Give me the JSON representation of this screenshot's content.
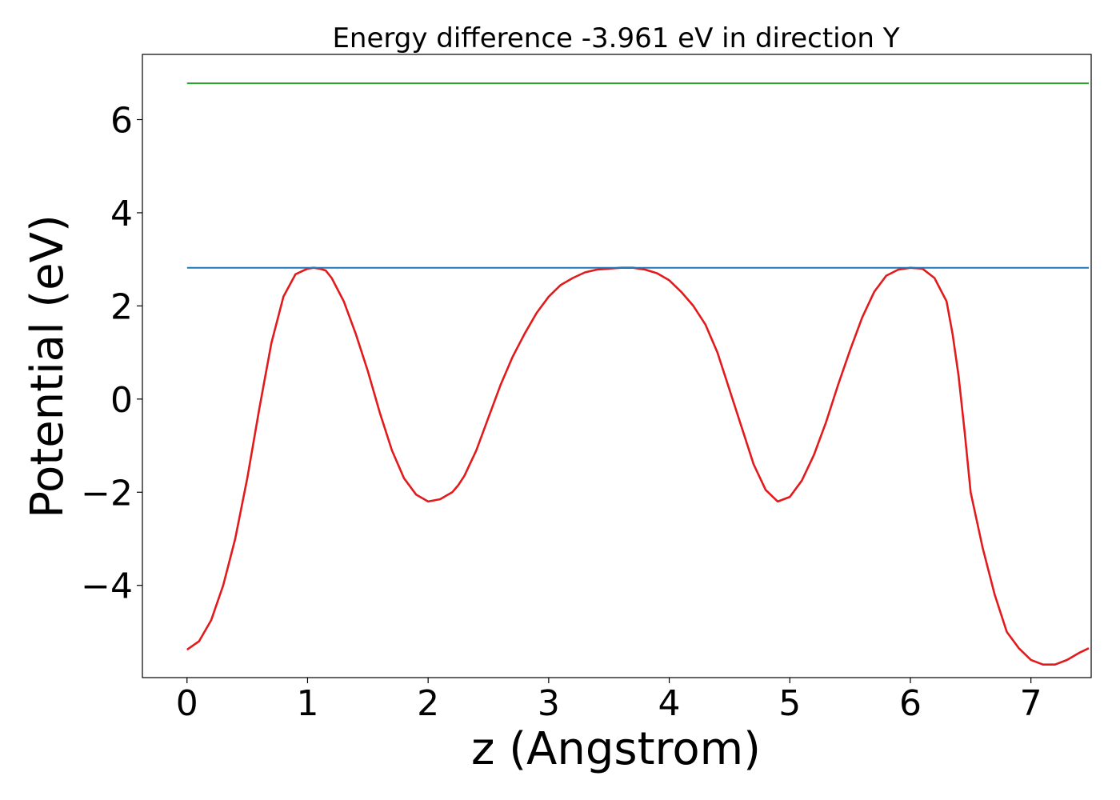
{
  "chart_data": {
    "type": "line",
    "title": "Energy difference -3.961 eV in direction Y",
    "xlabel": "z (Angstrom)",
    "ylabel": "Potential (eV)",
    "xlim": [
      -0.37,
      7.5
    ],
    "ylim": [
      -5.98,
      7.4
    ],
    "xticks": [
      0,
      1,
      2,
      3,
      4,
      5,
      6,
      7
    ],
    "xtick_labels": [
      "0",
      "1",
      "2",
      "3",
      "4",
      "5",
      "6",
      "7"
    ],
    "yticks": [
      -4,
      -2,
      0,
      2,
      4,
      6
    ],
    "ytick_labels": [
      "−4",
      "−2",
      "0",
      "2",
      "4",
      "6"
    ],
    "grid": false,
    "series": [
      {
        "role": "potential",
        "color": "#e31a1c",
        "x": [
          0.0,
          0.1,
          0.2,
          0.3,
          0.4,
          0.5,
          0.6,
          0.7,
          0.8,
          0.9,
          1.0,
          1.05,
          1.1,
          1.15,
          1.2,
          1.3,
          1.4,
          1.5,
          1.6,
          1.7,
          1.8,
          1.9,
          2.0,
          2.1,
          2.2,
          2.25,
          2.3,
          2.4,
          2.5,
          2.6,
          2.7,
          2.8,
          2.9,
          3.0,
          3.1,
          3.2,
          3.3,
          3.4,
          3.5,
          3.6,
          3.7,
          3.8,
          3.9,
          4.0,
          4.1,
          4.2,
          4.3,
          4.4,
          4.5,
          4.6,
          4.7,
          4.8,
          4.9,
          5.0,
          5.1,
          5.2,
          5.3,
          5.4,
          5.5,
          5.6,
          5.7,
          5.8,
          5.9,
          6.0,
          6.1,
          6.2,
          6.3,
          6.35,
          6.4,
          6.45,
          6.5,
          6.6,
          6.7,
          6.8,
          6.9,
          7.0,
          7.1,
          7.2,
          7.3,
          7.4,
          7.48
        ],
        "y": [
          -5.38,
          -5.2,
          -4.75,
          -4.0,
          -3.0,
          -1.7,
          -0.2,
          1.2,
          2.2,
          2.68,
          2.8,
          2.82,
          2.8,
          2.76,
          2.6,
          2.1,
          1.4,
          0.6,
          -0.3,
          -1.1,
          -1.7,
          -2.05,
          -2.2,
          -2.15,
          -2.0,
          -1.85,
          -1.65,
          -1.1,
          -0.4,
          0.3,
          0.9,
          1.4,
          1.85,
          2.2,
          2.45,
          2.6,
          2.72,
          2.78,
          2.8,
          2.82,
          2.82,
          2.78,
          2.7,
          2.55,
          2.3,
          2.0,
          1.6,
          1.0,
          0.2,
          -0.6,
          -1.4,
          -1.95,
          -2.2,
          -2.1,
          -1.75,
          -1.2,
          -0.5,
          0.3,
          1.05,
          1.75,
          2.3,
          2.65,
          2.78,
          2.82,
          2.8,
          2.6,
          2.1,
          1.4,
          0.5,
          -0.7,
          -2.0,
          -3.2,
          -4.2,
          -5.0,
          -5.35,
          -5.6,
          -5.7,
          -5.7,
          -5.6,
          -5.45,
          -5.35
        ]
      },
      {
        "role": "potential-maximum",
        "color": "#1f77b4",
        "x": [
          0.0,
          7.48
        ],
        "y": [
          2.82,
          2.82
        ]
      },
      {
        "role": "upper-level",
        "color": "#2ca02c",
        "x": [
          0.0,
          7.48
        ],
        "y": [
          6.78,
          6.78
        ]
      }
    ]
  }
}
